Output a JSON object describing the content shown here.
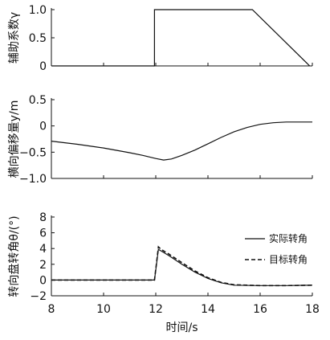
{
  "chart_data": [
    {
      "type": "line",
      "ylabel": "辅助系数γ",
      "xlim": [
        8,
        18
      ],
      "ylim": [
        0,
        1
      ],
      "yticks": [
        0,
        0.5,
        1.0
      ],
      "ytick_labels": [
        "0",
        "0.5",
        "1.0"
      ],
      "show_xtick_labels": false,
      "series": [
        {
          "style": "solid",
          "color": "#111111",
          "x": [
            8,
            11.95,
            11.95,
            15.7,
            17.9
          ],
          "y": [
            0,
            0,
            1,
            1,
            0
          ]
        }
      ]
    },
    {
      "type": "line",
      "ylabel": "横向偏移量y/m",
      "xlim": [
        8,
        18
      ],
      "ylim": [
        -1,
        0.5
      ],
      "yticks": [
        -1,
        -0.5,
        0,
        0.5
      ],
      "ytick_labels": [
        "−1.0",
        "−0.5",
        "0",
        "0.5"
      ],
      "show_xtick_labels": false,
      "series": [
        {
          "style": "solid",
          "color": "#111111",
          "x": [
            8,
            9,
            10,
            11,
            11.5,
            12,
            12.3,
            12.6,
            13,
            13.5,
            14,
            14.5,
            15,
            15.5,
            16,
            16.5,
            17,
            17.5,
            18
          ],
          "y": [
            -0.29,
            -0.35,
            -0.42,
            -0.51,
            -0.56,
            -0.62,
            -0.65,
            -0.63,
            -0.56,
            -0.46,
            -0.34,
            -0.22,
            -0.11,
            -0.03,
            0.03,
            0.06,
            0.075,
            0.075,
            0.075
          ]
        }
      ]
    },
    {
      "type": "line",
      "ylabel": "转向盘转角θ/(°)",
      "xlabel": "时间/s",
      "xlim": [
        8,
        18
      ],
      "ylim": [
        -2,
        8
      ],
      "yticks": [
        -2,
        0,
        2,
        4,
        6,
        8
      ],
      "ytick_labels": [
        "−2",
        "0",
        "2",
        "4",
        "6",
        "8"
      ],
      "xticks": [
        8,
        10,
        12,
        14,
        16,
        18
      ],
      "xtick_labels": [
        "8",
        "10",
        "12",
        "14",
        "16",
        "18"
      ],
      "legend_position": "top-right",
      "legend": [
        "实际转角",
        "目标转角"
      ],
      "series": [
        {
          "name": "实际转角",
          "style": "solid",
          "color": "#111111",
          "x": [
            8,
            11.95,
            12.1,
            12.2,
            12.5,
            13,
            13.5,
            14,
            14.5,
            15,
            16,
            17,
            18
          ],
          "y": [
            0,
            0,
            3.9,
            3.7,
            3.1,
            2.0,
            1.0,
            0.2,
            -0.35,
            -0.65,
            -0.7,
            -0.7,
            -0.65
          ]
        },
        {
          "name": "目标转角",
          "style": "dashed",
          "color": "#111111",
          "x": [
            8,
            11.95,
            12.1,
            12.2,
            12.5,
            13,
            13.5,
            14,
            14.5,
            15,
            16,
            17,
            18
          ],
          "y": [
            0,
            0,
            4.2,
            3.9,
            3.3,
            2.2,
            1.15,
            0.3,
            -0.3,
            -0.6,
            -0.7,
            -0.7,
            -0.65
          ]
        }
      ]
    }
  ]
}
